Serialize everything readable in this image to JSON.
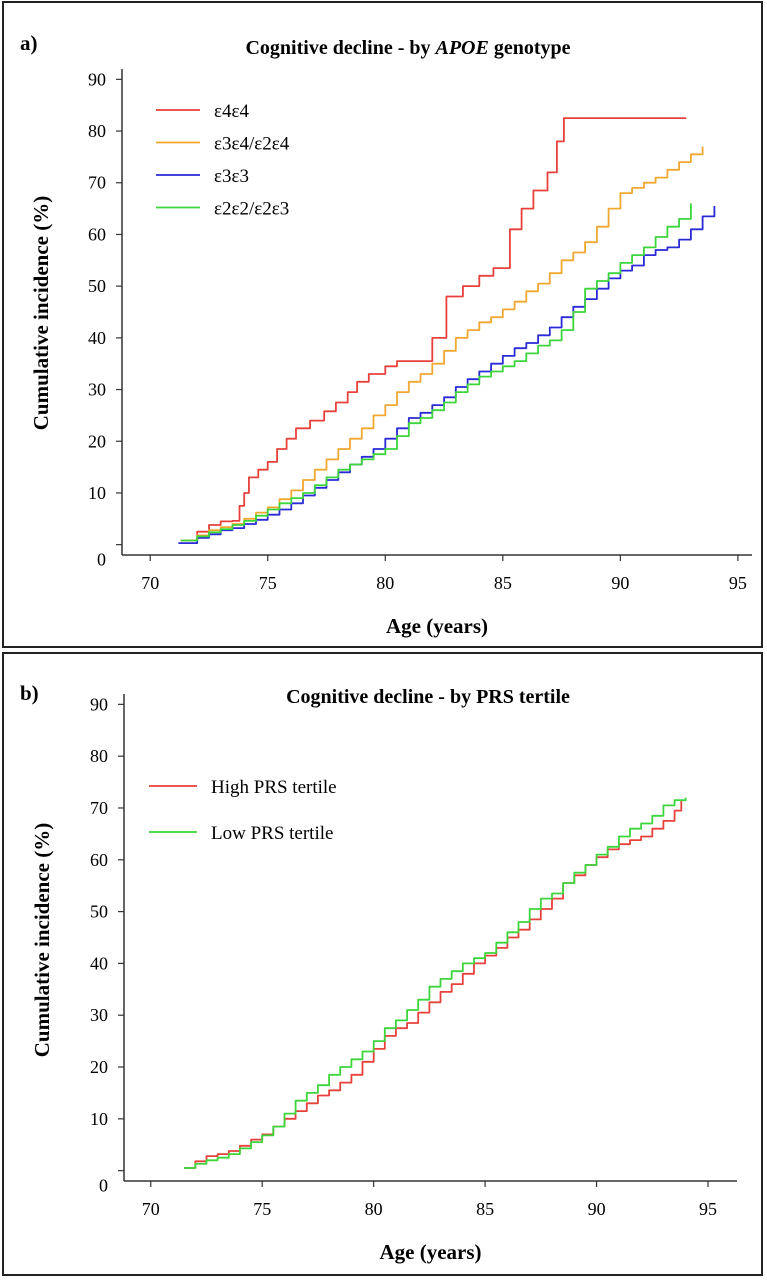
{
  "panels": [
    {
      "panel_label": "a)",
      "title_prefix": "Cognitive decline - by ",
      "title_italic": "APOE",
      "title_suffix": " genotype"
    },
    {
      "panel_label": "b)",
      "title_prefix": "Cognitive decline - by PRS tertile",
      "title_italic": "",
      "title_suffix": ""
    }
  ],
  "chart_data": [
    {
      "type": "line",
      "title": "Cognitive decline - by APOE genotype",
      "xlabel": "Age (years)",
      "ylabel": "Cumulative incidence (%)",
      "xlim": [
        68.8,
        95.6
      ],
      "ylim": [
        -2,
        92
      ],
      "x_ticks": [
        70,
        75,
        80,
        85,
        90,
        95
      ],
      "y_ticks": [
        0,
        10,
        20,
        30,
        40,
        50,
        60,
        70,
        80,
        90
      ],
      "grid": false,
      "legend_position": "top-left",
      "series": [
        {
          "name": "ε4ε4",
          "color": "#e8403a",
          "x": [
            71.3,
            72.0,
            72.5,
            73.0,
            73.5,
            73.8,
            74.0,
            74.2,
            74.6,
            75.0,
            75.4,
            75.8,
            76.2,
            76.8,
            77.4,
            77.9,
            78.4,
            78.8,
            79.3,
            80.0,
            80.5,
            81.0,
            81.6,
            82.0,
            82.6,
            83.3,
            84.0,
            84.6,
            85.0,
            85.3,
            85.8,
            86.3,
            86.9,
            87.3,
            87.6,
            88.5,
            90.0,
            91.5,
            92.8
          ],
          "y": [
            0.8,
            2.5,
            3.8,
            4.5,
            4.6,
            7.5,
            10.0,
            13.0,
            14.5,
            16.0,
            18.5,
            20.5,
            22.5,
            24.0,
            25.8,
            27.5,
            29.5,
            31.5,
            33.0,
            34.5,
            35.5,
            35.5,
            35.5,
            40.0,
            48.0,
            50.0,
            52.0,
            53.5,
            53.5,
            61.0,
            65.0,
            68.5,
            72.0,
            78.0,
            82.5,
            82.5,
            82.5,
            82.5,
            82.5
          ]
        },
        {
          "name": "ε3ε4/ε2ε4",
          "color": "#f0a830",
          "x": [
            71.3,
            72.0,
            72.5,
            73.0,
            73.5,
            74.0,
            74.5,
            75.0,
            75.5,
            76.0,
            76.5,
            77.0,
            77.5,
            78.0,
            78.5,
            79.0,
            79.5,
            80.0,
            80.5,
            81.0,
            81.5,
            82.0,
            82.5,
            83.0,
            83.5,
            84.0,
            84.5,
            85.0,
            85.5,
            86.0,
            86.5,
            87.0,
            87.5,
            88.0,
            88.5,
            89.0,
            89.5,
            90.0,
            90.5,
            91.0,
            91.5,
            92.0,
            92.5,
            93.0,
            93.5
          ],
          "y": [
            0.8,
            1.8,
            2.8,
            3.4,
            4.0,
            5.0,
            6.2,
            7.2,
            8.8,
            10.5,
            12.5,
            14.5,
            16.5,
            18.5,
            20.5,
            22.5,
            25.0,
            27.0,
            29.5,
            31.5,
            33.0,
            35.0,
            37.5,
            40.0,
            41.5,
            43.0,
            44.0,
            45.5,
            47.0,
            49.0,
            50.5,
            52.5,
            55.0,
            56.5,
            58.5,
            61.5,
            65.0,
            68.0,
            69.0,
            70.0,
            71.0,
            72.5,
            74.0,
            75.5,
            77.0
          ]
        },
        {
          "name": "ε3ε3",
          "color": "#2a2ad6",
          "x": [
            71.2,
            72.0,
            72.5,
            73.0,
            73.5,
            74.0,
            74.5,
            75.0,
            75.5,
            76.0,
            76.5,
            77.0,
            77.5,
            78.0,
            78.5,
            79.0,
            79.5,
            80.0,
            80.5,
            81.0,
            81.5,
            82.0,
            82.5,
            83.0,
            83.5,
            84.0,
            84.5,
            85.0,
            85.5,
            86.0,
            86.5,
            87.0,
            87.5,
            88.0,
            88.5,
            89.0,
            89.5,
            90.0,
            90.5,
            91.0,
            91.5,
            92.0,
            92.5,
            93.0,
            93.5,
            94.0
          ],
          "y": [
            0.3,
            1.3,
            2.0,
            2.8,
            3.2,
            4.0,
            4.8,
            5.8,
            6.8,
            8.0,
            9.5,
            11.0,
            12.5,
            14.0,
            15.5,
            17.0,
            18.5,
            20.5,
            22.5,
            24.5,
            25.5,
            27.0,
            28.5,
            30.5,
            32.0,
            33.5,
            35.0,
            36.5,
            38.0,
            39.0,
            40.5,
            42.0,
            44.0,
            46.0,
            47.5,
            49.5,
            51.5,
            53.0,
            54.0,
            56.0,
            57.0,
            57.5,
            59.0,
            61.0,
            63.5,
            65.5
          ]
        },
        {
          "name": "ε2ε2/ε2ε3",
          "color": "#3cd63c",
          "x": [
            71.3,
            72.0,
            72.5,
            73.0,
            73.5,
            74.0,
            74.5,
            75.0,
            75.5,
            76.0,
            76.5,
            77.0,
            77.5,
            78.0,
            78.5,
            79.0,
            79.5,
            80.0,
            80.5,
            81.0,
            81.5,
            82.0,
            82.5,
            83.0,
            83.5,
            84.0,
            84.5,
            85.0,
            85.5,
            86.0,
            86.5,
            87.0,
            87.5,
            88.0,
            88.5,
            89.0,
            89.5,
            90.0,
            90.5,
            91.0,
            91.5,
            92.0,
            92.5,
            93.0
          ],
          "y": [
            0.8,
            1.6,
            2.4,
            3.0,
            3.8,
            4.6,
            5.6,
            6.8,
            8.0,
            9.0,
            10.0,
            11.5,
            13.0,
            14.5,
            15.5,
            16.5,
            17.5,
            18.5,
            21.0,
            23.5,
            24.5,
            26.0,
            27.5,
            29.5,
            31.0,
            32.5,
            33.5,
            34.5,
            35.5,
            37.0,
            38.5,
            39.5,
            41.5,
            45.0,
            49.5,
            51.0,
            52.5,
            54.5,
            56.0,
            57.5,
            59.5,
            61.5,
            63.0,
            66.0
          ]
        }
      ]
    },
    {
      "type": "line",
      "title": "Cognitive decline - by PRS tertile",
      "xlabel": "Age (years)",
      "ylabel": "Cumulative incidence (%)",
      "xlim": [
        68.8,
        96.3
      ],
      "ylim": [
        -2,
        92
      ],
      "x_ticks": [
        70,
        75,
        80,
        85,
        90,
        95
      ],
      "y_ticks": [
        0,
        10,
        20,
        30,
        40,
        50,
        60,
        70,
        80,
        90
      ],
      "grid": false,
      "legend_position": "top-left",
      "series": [
        {
          "name": "High PRS tertile",
          "color": "#e8403a",
          "x": [
            71.5,
            72.0,
            72.5,
            73.0,
            73.5,
            74.0,
            74.5,
            75.0,
            75.5,
            76.0,
            76.5,
            77.0,
            77.5,
            78.0,
            78.5,
            79.0,
            79.5,
            80.0,
            80.5,
            81.0,
            81.5,
            82.0,
            82.5,
            83.0,
            83.5,
            84.0,
            84.5,
            85.0,
            85.5,
            86.0,
            86.5,
            87.0,
            87.5,
            88.0,
            88.5,
            89.0,
            89.5,
            90.0,
            90.5,
            91.0,
            91.5,
            92.0,
            92.5,
            93.0,
            93.5,
            93.8
          ],
          "y": [
            0.5,
            1.8,
            2.8,
            3.2,
            3.8,
            4.8,
            6.0,
            7.0,
            8.5,
            10.0,
            11.5,
            13.0,
            14.5,
            15.5,
            17.0,
            18.5,
            21.0,
            23.5,
            26.0,
            27.5,
            28.5,
            30.5,
            32.5,
            34.5,
            36.0,
            38.0,
            40.0,
            41.5,
            43.0,
            45.0,
            46.5,
            48.5,
            50.5,
            52.5,
            55.5,
            57.0,
            59.0,
            60.5,
            62.0,
            63.0,
            63.8,
            64.5,
            66.0,
            67.5,
            69.5,
            71.5
          ]
        },
        {
          "name": "Low PRS tertile",
          "color": "#3cd63c",
          "x": [
            71.5,
            72.0,
            72.5,
            73.0,
            73.5,
            74.0,
            74.5,
            75.0,
            75.5,
            76.0,
            76.5,
            77.0,
            77.5,
            78.0,
            78.5,
            79.0,
            79.5,
            80.0,
            80.5,
            81.0,
            81.5,
            82.0,
            82.5,
            83.0,
            83.5,
            84.0,
            84.5,
            85.0,
            85.5,
            86.0,
            86.5,
            87.0,
            87.5,
            88.0,
            88.5,
            89.0,
            89.5,
            90.0,
            90.5,
            91.0,
            91.5,
            92.0,
            92.5,
            93.0,
            93.5,
            94.0
          ],
          "y": [
            0.5,
            1.3,
            2.0,
            2.5,
            3.2,
            4.3,
            5.5,
            6.8,
            8.5,
            11.0,
            13.5,
            15.0,
            16.5,
            18.5,
            20.0,
            21.5,
            23.0,
            25.0,
            27.5,
            29.0,
            31.0,
            33.0,
            35.5,
            37.0,
            38.5,
            40.0,
            41.0,
            42.0,
            44.0,
            46.0,
            48.0,
            50.5,
            52.5,
            53.5,
            55.5,
            57.5,
            59.0,
            61.0,
            62.5,
            64.5,
            66.0,
            67.0,
            68.5,
            70.5,
            71.5,
            72.0
          ]
        }
      ]
    }
  ]
}
